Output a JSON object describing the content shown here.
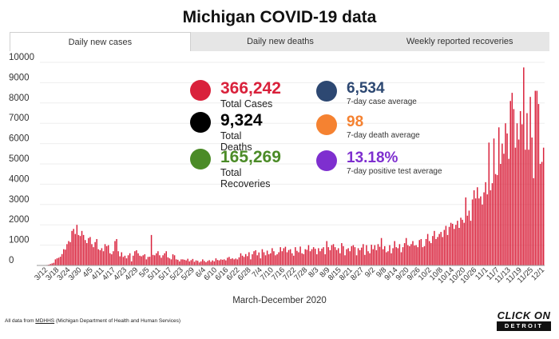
{
  "title": "Michigan COVID-19 data",
  "tabs": [
    {
      "label": "Daily new cases",
      "active": true
    },
    {
      "label": "Daily new deaths",
      "active": false
    },
    {
      "label": "Weekly reported recoveries",
      "active": false
    }
  ],
  "stats": {
    "total_cases": {
      "value": "366,242",
      "label": "Total Cases",
      "color": "#d9213b"
    },
    "total_deaths": {
      "value": "9,324",
      "label": "Total Deaths",
      "color": "#000000"
    },
    "total_recoveries": {
      "value": "165,269",
      "label": "Total Recoveries",
      "color": "#4b8b27"
    },
    "case_avg": {
      "value": "6,534",
      "label": "7-day case average",
      "color": "#2d4872"
    },
    "death_avg": {
      "value": "98",
      "label": "7-day death average",
      "color": "#f58231"
    },
    "positive_rate": {
      "value": "13.18%",
      "label": "7-day positive test average",
      "color": "#7e2fcf"
    }
  },
  "x_caption": "March-December 2020",
  "source": {
    "prefix": "All data from ",
    "link": "MDHHS",
    "suffix": " (Michigan Department of Health and Human Services)"
  },
  "logo": {
    "line1": "CLICK ON",
    "line2": "DETROIT"
  },
  "chart_data": {
    "type": "bar",
    "bar_color": "#d9213b",
    "ylim": [
      0,
      10000
    ],
    "yticks": [
      0,
      1000,
      2000,
      3000,
      4000,
      5000,
      6000,
      7000,
      8000,
      9000,
      10000
    ],
    "x_ticks": [
      "3/12",
      "3/18",
      "3/24",
      "3/30",
      "4/5",
      "4/11",
      "4/17",
      "4/23",
      "4/29",
      "5/5",
      "5/11",
      "5/17",
      "5/23",
      "5/29",
      "6/4",
      "6/10",
      "6/16",
      "6/22",
      "6/28",
      "7/4",
      "7/10",
      "7/16",
      "7/22",
      "7/28",
      "8/3",
      "8/9",
      "8/15",
      "8/21",
      "8/27",
      "9/2",
      "9/8",
      "9/14",
      "9/20",
      "9/26",
      "10/2",
      "10/8",
      "10/14",
      "10/20",
      "10/26",
      "11/1",
      "11/7",
      "11/13",
      "11/19",
      "11/25",
      "12/1"
    ],
    "values": [
      2,
      5,
      10,
      15,
      25,
      40,
      70,
      100,
      130,
      300,
      350,
      380,
      430,
      560,
      800,
      780,
      1050,
      1200,
      1150,
      1700,
      1800,
      1550,
      2000,
      1500,
      1450,
      1700,
      1500,
      1250,
      1100,
      1350,
      1400,
      1050,
      900,
      1150,
      1300,
      800,
      750,
      850,
      700,
      1050,
      950,
      1000,
      600,
      550,
      700,
      1200,
      1300,
      700,
      450,
      650,
      420,
      480,
      350,
      500,
      600,
      200,
      480,
      700,
      750,
      600,
      480,
      450,
      500,
      550,
      300,
      420,
      430,
      1500,
      520,
      500,
      600,
      700,
      500,
      380,
      500,
      600,
      700,
      400,
      350,
      300,
      550,
      500,
      300,
      280,
      200,
      300,
      300,
      280,
      250,
      330,
      200,
      260,
      320,
      180,
      250,
      230,
      150,
      200,
      300,
      220,
      160,
      220,
      260,
      180,
      250,
      200,
      350,
      270,
      250,
      300,
      280,
      300,
      250,
      380,
      420,
      320,
      350,
      300,
      340,
      300,
      400,
      600,
      480,
      420,
      560,
      460,
      650,
      300,
      550,
      700,
      750,
      500,
      640,
      350,
      800,
      650,
      500,
      730,
      550,
      600,
      850,
      700,
      500,
      550,
      650,
      900,
      700,
      850,
      920,
      650,
      760,
      800,
      600,
      480,
      900,
      720,
      650,
      930,
      600,
      560,
      800,
      770,
      1000,
      700,
      800,
      900,
      820,
      550,
      850,
      700,
      830,
      900,
      550,
      1200,
      900,
      750,
      1000,
      1050,
      900,
      760,
      850,
      600,
      1100,
      950,
      500,
      800,
      850,
      700,
      950,
      1000,
      900,
      500,
      850,
      750,
      880,
      1050,
      520,
      1000,
      700,
      600,
      1020,
      800,
      1000,
      750,
      1050,
      920,
      1350,
      800,
      950,
      650,
      700,
      1000,
      600,
      850,
      1200,
      900,
      850,
      1050,
      650,
      900,
      1100,
      1350,
      1000,
      950,
      1050,
      1200,
      980,
      1000,
      900,
      1250,
      1300,
      900,
      950,
      1300,
      1550,
      1200,
      1100,
      1450,
      1700,
      1300,
      1400,
      1550,
      1650,
      1400,
      1750,
      1950,
      1500,
      1900,
      2100,
      2050,
      1800,
      2000,
      2200,
      1850,
      2350,
      2250,
      2100,
      3350,
      2450,
      2700,
      2200,
      3250,
      3700,
      3300,
      3850,
      3300,
      3400,
      3000,
      3600,
      4100,
      3500,
      6050,
      3700,
      4050,
      6250,
      4500,
      4450,
      6800,
      5000,
      6000,
      5500,
      7000,
      6500,
      5250,
      8100,
      8500,
      7700,
      5800,
      7000,
      6200,
      7600,
      6950,
      9750,
      5700,
      7500,
      5700,
      8300,
      6300,
      4300,
      8600,
      8600,
      7950,
      5000,
      5100,
      5800
    ]
  }
}
